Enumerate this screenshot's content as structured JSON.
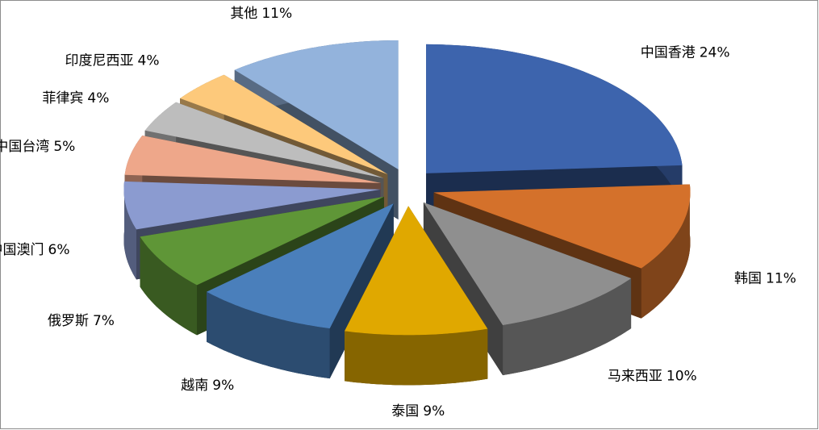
{
  "chart_data": {
    "type": "pie3d",
    "categories": [
      "中国香港",
      "韩国",
      "马来西亚",
      "泰国",
      "越南",
      "俄罗斯",
      "中国澳门",
      "中国台湾",
      "菲律宾",
      "印度尼西亚",
      "其他"
    ],
    "values": [
      24,
      11,
      10,
      9,
      9,
      7,
      6,
      5,
      4,
      4,
      11
    ],
    "value_labels": [
      "24%",
      "11%",
      "10%",
      "9%",
      "9%",
      "7%",
      "6%",
      "5%",
      "4%",
      "4%",
      "11%"
    ],
    "colors": [
      "#3d64ad",
      "#d4712b",
      "#8f8f8f",
      "#e0a800",
      "#4a7fbb",
      "#5f9637",
      "#8b9bd0",
      "#eea78a",
      "#bdbdbd",
      "#fdc97b",
      "#93b3dc"
    ]
  }
}
